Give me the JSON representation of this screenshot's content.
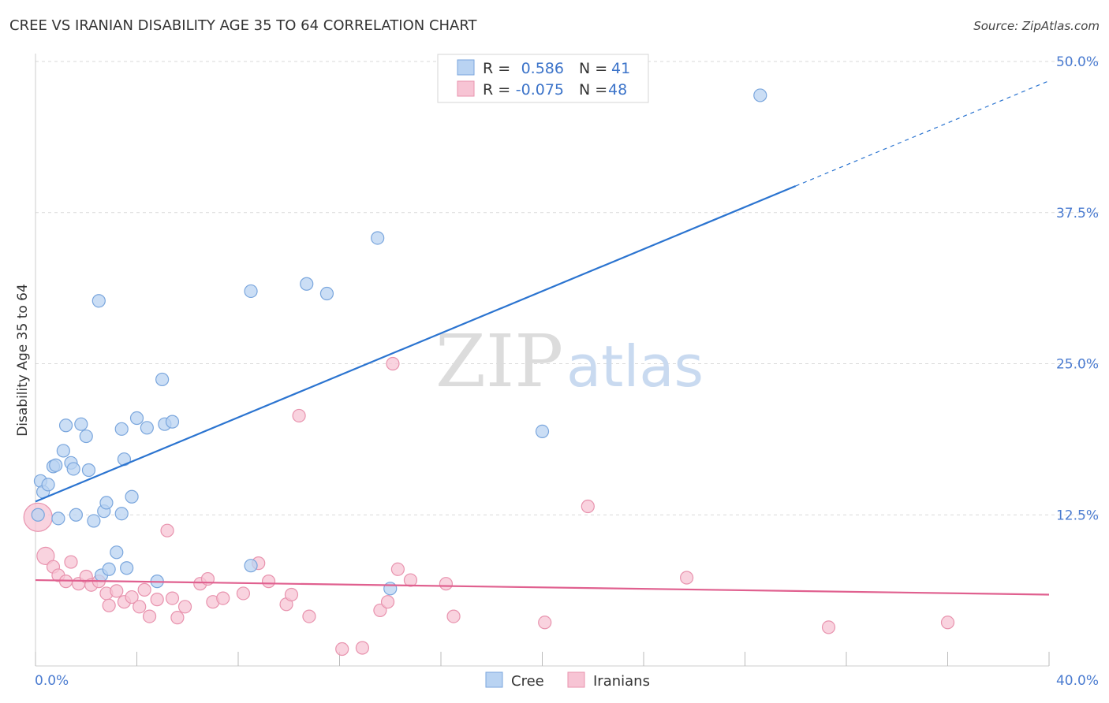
{
  "title": "CREE VS IRANIAN DISABILITY AGE 35 TO 64 CORRELATION CHART",
  "source": "Source: ZipAtlas.com",
  "watermark": {
    "zip": "ZIP",
    "atlas": "atlas"
  },
  "colors": {
    "cree_fill": "#b9d3f2",
    "cree_stroke": "#7aa6dd",
    "cree_line": "#2b74d0",
    "iranian_fill": "#f7c4d4",
    "iranian_stroke": "#e893ae",
    "iranian_line": "#e0608f",
    "grid": "#d9d9d9",
    "tick_label": "#4a7bd0"
  },
  "legend": {
    "rows": [
      {
        "r_label": "R =",
        "r_value": "0.586",
        "n_label": "N =",
        "n_value": "41"
      },
      {
        "r_label": "R =",
        "r_value": "-0.075",
        "n_label": "N =",
        "n_value": "48"
      }
    ]
  },
  "bottom_legend": {
    "cree": "Cree",
    "iranians": "Iranians"
  },
  "chart_data": {
    "type": "scatter",
    "title": "CREE VS IRANIAN DISABILITY AGE 35 TO 64 CORRELATION CHART",
    "xlabel": "",
    "ylabel": "Disability Age 35 to 64",
    "xlim": [
      0,
      40
    ],
    "ylim": [
      0,
      50
    ],
    "x_tick_labels": [
      "0.0%",
      "40.0%"
    ],
    "y_ticks": [
      12.5,
      25.0,
      37.5,
      50.0
    ],
    "y_tick_labels": [
      "12.5%",
      "25.0%",
      "37.5%",
      "50.0%"
    ],
    "grid": true,
    "series": [
      {
        "name": "Cree",
        "points": [
          [
            0.1,
            12.5
          ],
          [
            0.2,
            15.3
          ],
          [
            0.3,
            14.4
          ],
          [
            0.5,
            15.0
          ],
          [
            0.7,
            16.5
          ],
          [
            0.8,
            16.6
          ],
          [
            0.9,
            12.2
          ],
          [
            1.1,
            17.8
          ],
          [
            1.2,
            19.9
          ],
          [
            1.4,
            16.8
          ],
          [
            1.5,
            16.3
          ],
          [
            1.6,
            12.5
          ],
          [
            1.8,
            20.0
          ],
          [
            2.0,
            19.0
          ],
          [
            2.1,
            16.2
          ],
          [
            2.3,
            12.0
          ],
          [
            2.5,
            30.2
          ],
          [
            2.6,
            7.5
          ],
          [
            2.7,
            12.8
          ],
          [
            2.8,
            13.5
          ],
          [
            2.9,
            8.0
          ],
          [
            3.2,
            9.4
          ],
          [
            3.4,
            19.6
          ],
          [
            3.4,
            12.6
          ],
          [
            3.5,
            17.1
          ],
          [
            3.6,
            8.1
          ],
          [
            3.8,
            14.0
          ],
          [
            4.0,
            20.5
          ],
          [
            4.4,
            19.7
          ],
          [
            4.8,
            7.0
          ],
          [
            5.0,
            23.7
          ],
          [
            5.1,
            20.0
          ],
          [
            5.4,
            20.2
          ],
          [
            8.5,
            8.3
          ],
          [
            8.5,
            31.0
          ],
          [
            10.7,
            31.6
          ],
          [
            11.5,
            30.8
          ],
          [
            13.5,
            35.4
          ],
          [
            14.0,
            6.4
          ],
          [
            20.0,
            19.4
          ],
          [
            28.6,
            47.2
          ]
        ]
      },
      {
        "name": "Iranians",
        "points": [
          [
            0.1,
            12.3
          ],
          [
            0.4,
            9.1
          ],
          [
            0.7,
            8.2
          ],
          [
            0.9,
            7.5
          ],
          [
            1.2,
            7.0
          ],
          [
            1.4,
            8.6
          ],
          [
            1.7,
            6.8
          ],
          [
            2.0,
            7.4
          ],
          [
            2.2,
            6.7
          ],
          [
            2.5,
            7.0
          ],
          [
            2.8,
            6.0
          ],
          [
            2.9,
            5.0
          ],
          [
            3.2,
            6.2
          ],
          [
            3.5,
            5.3
          ],
          [
            3.8,
            5.7
          ],
          [
            4.1,
            4.9
          ],
          [
            4.3,
            6.3
          ],
          [
            4.5,
            4.1
          ],
          [
            4.8,
            5.5
          ],
          [
            5.2,
            11.2
          ],
          [
            5.4,
            5.6
          ],
          [
            5.6,
            4.0
          ],
          [
            5.9,
            4.9
          ],
          [
            6.5,
            6.8
          ],
          [
            6.8,
            7.2
          ],
          [
            7.0,
            5.3
          ],
          [
            7.4,
            5.6
          ],
          [
            8.2,
            6.0
          ],
          [
            8.8,
            8.5
          ],
          [
            9.2,
            7.0
          ],
          [
            9.9,
            5.1
          ],
          [
            10.1,
            5.9
          ],
          [
            10.4,
            20.7
          ],
          [
            10.8,
            4.1
          ],
          [
            12.1,
            1.4
          ],
          [
            12.9,
            1.5
          ],
          [
            13.6,
            4.6
          ],
          [
            13.9,
            5.3
          ],
          [
            14.1,
            25.0
          ],
          [
            14.3,
            8.0
          ],
          [
            14.8,
            7.1
          ],
          [
            16.2,
            6.8
          ],
          [
            16.5,
            4.1
          ],
          [
            20.1,
            3.6
          ],
          [
            21.8,
            13.2
          ],
          [
            25.7,
            7.3
          ],
          [
            31.3,
            3.2
          ],
          [
            36.0,
            3.6
          ]
        ]
      }
    ],
    "trend_lines": [
      {
        "name": "Cree",
        "x0": 0,
        "y0": 13.6,
        "x1": 30.0,
        "y1": 39.7,
        "dashed_to": [
          40,
          48.4
        ]
      },
      {
        "name": "Iranians",
        "x0": 0,
        "y0": 7.1,
        "x1": 40,
        "y1": 5.9
      }
    ]
  }
}
